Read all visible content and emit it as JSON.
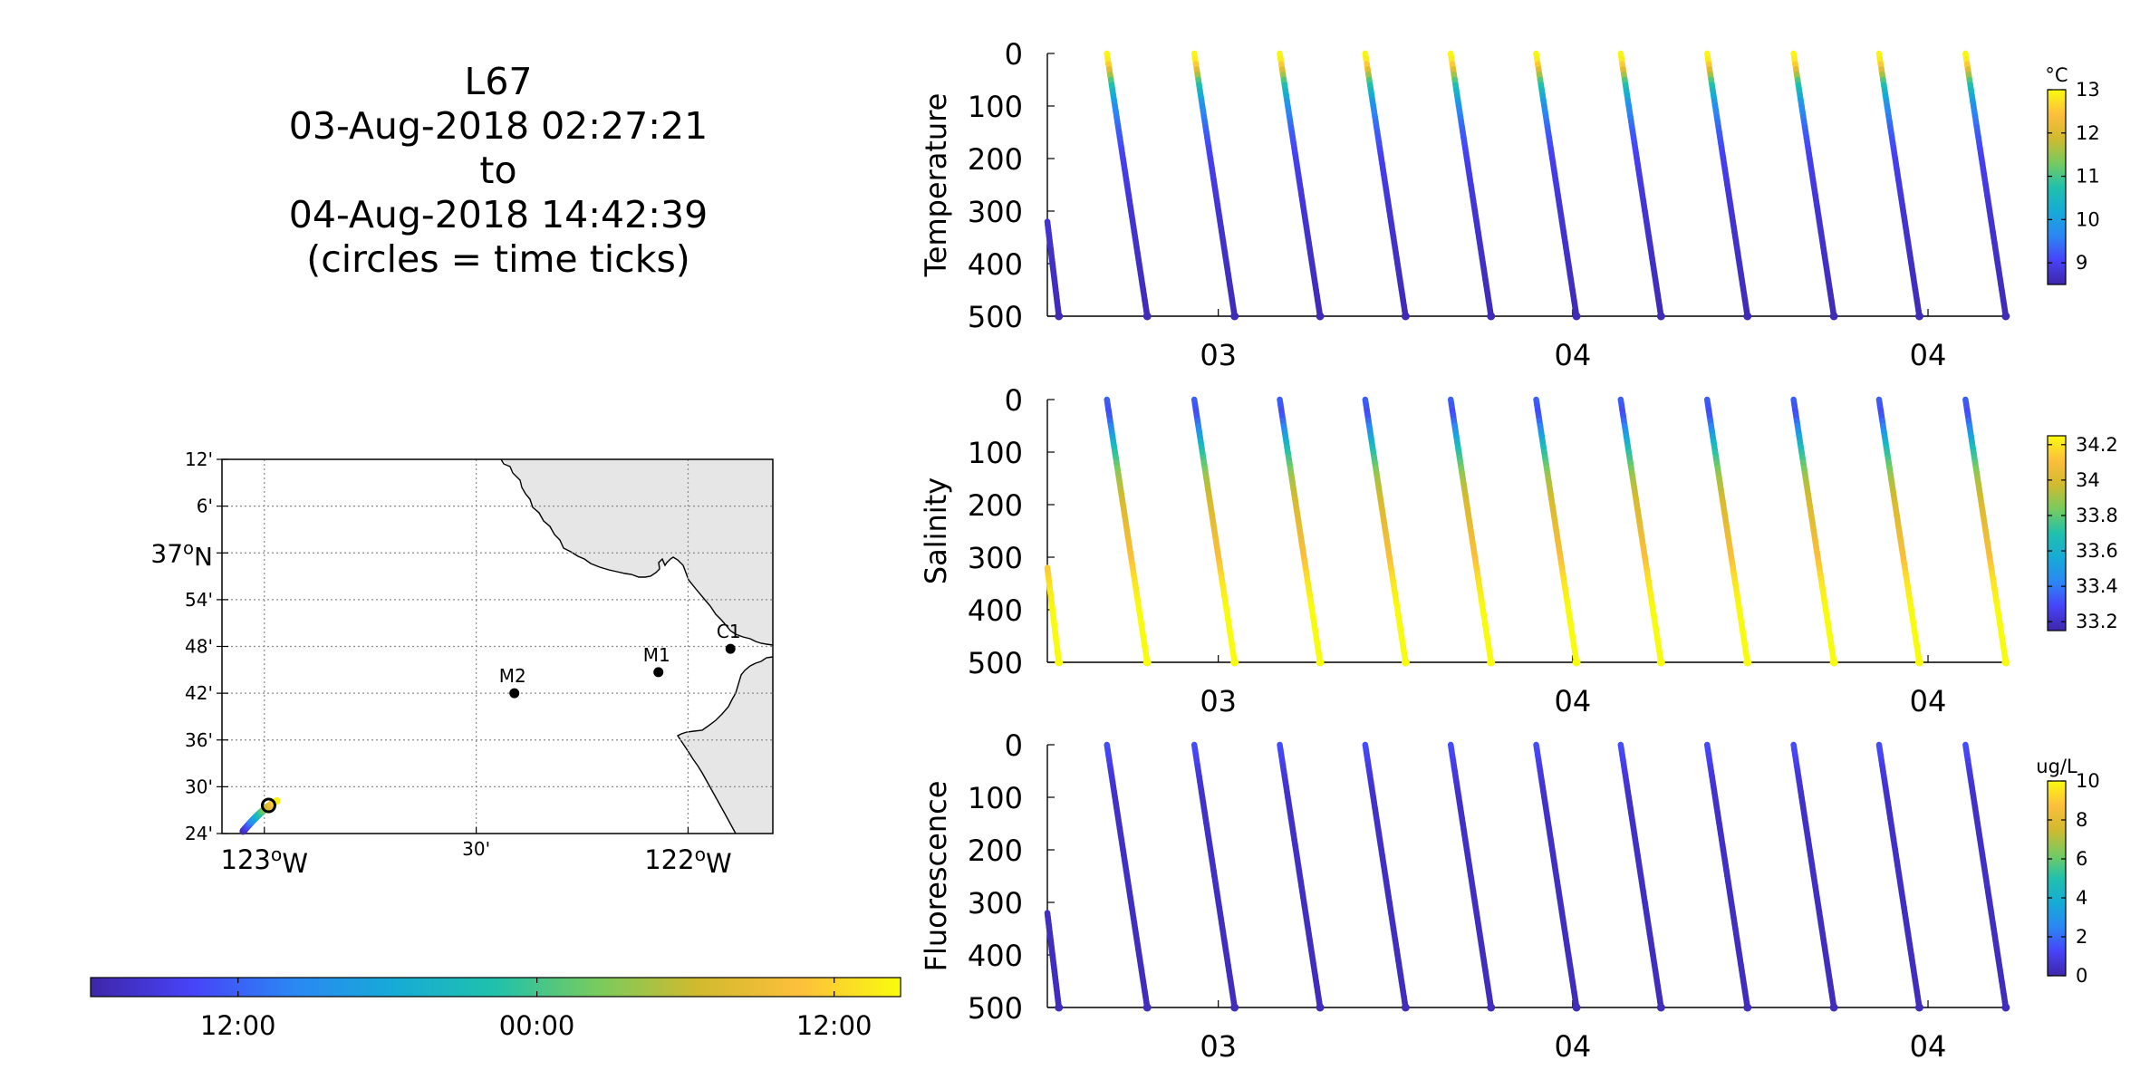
{
  "title_lines": [
    "L67",
    "03-Aug-2018 02:27:21",
    "to",
    "04-Aug-2018 14:42:39",
    "(circles = time ticks)"
  ],
  "colormap": [
    "#3e26a8",
    "#4743f8",
    "#2b87f4",
    "#16abd6",
    "#20c1ac",
    "#78cb5e",
    "#d1ba2e",
    "#fdbf3c",
    "#f9fb0e"
  ],
  "map": {
    "lat_ticks": [
      "12'",
      "6'",
      "37ºN",
      "54'",
      "48'",
      "42'",
      "36'",
      "30'",
      "24'"
    ],
    "lat_values": [
      37.2,
      37.1,
      37.0,
      36.9,
      36.8,
      36.7,
      36.6,
      36.5,
      36.4
    ],
    "lat_range": [
      36.4,
      37.2
    ],
    "lon_range": [
      -123.05,
      -121.75
    ],
    "lon_ticks": [
      "123ºW",
      "30'",
      "122ºW"
    ],
    "lon_values": [
      -122.95,
      -122.45,
      -121.95
    ],
    "stations": [
      {
        "name": "M2",
        "lon": -122.36,
        "lat": 36.7
      },
      {
        "name": "M1",
        "lon": -122.02,
        "lat": 36.745
      },
      {
        "name": "C1",
        "lon": -121.85,
        "lat": 36.795
      }
    ],
    "track_start": [
      -123.0,
      36.405
    ],
    "track_end": [
      -122.92,
      36.47
    ],
    "time_tick_circle": [
      -122.94,
      36.46
    ]
  },
  "time_colorbar": {
    "tick_labels": [
      "12:00",
      "00:00",
      "12:00"
    ],
    "tick_fractions": [
      0.182,
      0.551,
      0.918
    ]
  },
  "chart_data": [
    {
      "type": "scatter",
      "name": "Temperature",
      "ylabel": "Temperature",
      "y_ticks": [
        "0",
        "100",
        "200",
        "300",
        "400",
        "500"
      ],
      "ylim": [
        0,
        500
      ],
      "x_tick_labels": [
        "03",
        "04",
        "04"
      ],
      "x_tick_fractions": [
        0.178,
        0.547,
        0.917
      ],
      "colorbar": {
        "unit": "°C",
        "ticks": [
          "13",
          "12",
          "11",
          "10",
          "9"
        ],
        "tick_values": [
          13,
          12,
          11,
          10,
          9
        ],
        "range": [
          8.5,
          13
        ]
      },
      "profiles": [
        {
          "x0": 0.012,
          "x1": 0.0,
          "y0": 500,
          "y1": 320,
          "kind": "up"
        },
        {
          "x0": 0.062,
          "x1": 0.104,
          "y0": 0,
          "y1": 500,
          "kind": "down"
        },
        {
          "x0": 0.153,
          "x1": 0.195,
          "y0": 0,
          "y1": 500,
          "kind": "down"
        },
        {
          "x0": 0.242,
          "x1": 0.284,
          "y0": 0,
          "y1": 500,
          "kind": "down"
        },
        {
          "x0": 0.331,
          "x1": 0.373,
          "y0": 0,
          "y1": 500,
          "kind": "down"
        },
        {
          "x0": 0.42,
          "x1": 0.462,
          "y0": 0,
          "y1": 500,
          "kind": "down"
        },
        {
          "x0": 0.509,
          "x1": 0.551,
          "y0": 0,
          "y1": 500,
          "kind": "down"
        },
        {
          "x0": 0.597,
          "x1": 0.639,
          "y0": 0,
          "y1": 500,
          "kind": "down"
        },
        {
          "x0": 0.687,
          "x1": 0.729,
          "y0": 0,
          "y1": 500,
          "kind": "down"
        },
        {
          "x0": 0.777,
          "x1": 0.819,
          "y0": 0,
          "y1": 500,
          "kind": "down"
        },
        {
          "x0": 0.866,
          "x1": 0.908,
          "y0": 0,
          "y1": 500,
          "kind": "down"
        },
        {
          "x0": 0.956,
          "x1": 0.998,
          "y0": 0,
          "y1": 500,
          "kind": "down"
        }
      ],
      "profile_values": {
        "depths": [
          0,
          20,
          40,
          60,
          100,
          150,
          200,
          300,
          400,
          500
        ],
        "values": [
          13,
          12.8,
          11.8,
          10.8,
          9.8,
          9.3,
          9.0,
          8.8,
          8.7,
          8.6
        ]
      }
    },
    {
      "type": "scatter",
      "name": "Salinity",
      "ylabel": "Salinity",
      "y_ticks": [
        "0",
        "100",
        "200",
        "300",
        "400",
        "500"
      ],
      "ylim": [
        0,
        500
      ],
      "x_tick_labels": [
        "03",
        "04",
        "04"
      ],
      "x_tick_fractions": [
        0.178,
        0.547,
        0.917
      ],
      "colorbar": {
        "unit": "",
        "ticks": [
          "34.2",
          "34",
          "33.8",
          "33.6",
          "33.4",
          "33.2"
        ],
        "tick_values": [
          34.2,
          34.0,
          33.8,
          33.6,
          33.4,
          33.2
        ],
        "range": [
          33.15,
          34.25
        ]
      },
      "profile_values": {
        "depths": [
          0,
          30,
          60,
          100,
          150,
          200,
          250,
          300,
          350,
          400,
          500
        ],
        "values": [
          33.35,
          33.3,
          33.45,
          33.7,
          33.9,
          34.0,
          34.05,
          34.1,
          34.2,
          34.25,
          34.25
        ]
      }
    },
    {
      "type": "scatter",
      "name": "Fluorescence",
      "ylabel": "Fluorescence",
      "y_ticks": [
        "0",
        "100",
        "200",
        "300",
        "400",
        "500"
      ],
      "ylim": [
        0,
        500
      ],
      "x_tick_labels": [
        "03",
        "04",
        "04"
      ],
      "x_tick_fractions": [
        0.178,
        0.547,
        0.917
      ],
      "colorbar": {
        "unit": "ug/L",
        "ticks": [
          "10",
          "8",
          "6",
          "4",
          "2",
          "0"
        ],
        "tick_values": [
          10,
          8,
          6,
          4,
          2,
          0
        ],
        "range": [
          0,
          10
        ]
      },
      "profile_values": {
        "depths": [
          0,
          20,
          50,
          100,
          500
        ],
        "values": [
          1.5,
          1.3,
          0.9,
          0.5,
          0.3
        ]
      }
    }
  ]
}
